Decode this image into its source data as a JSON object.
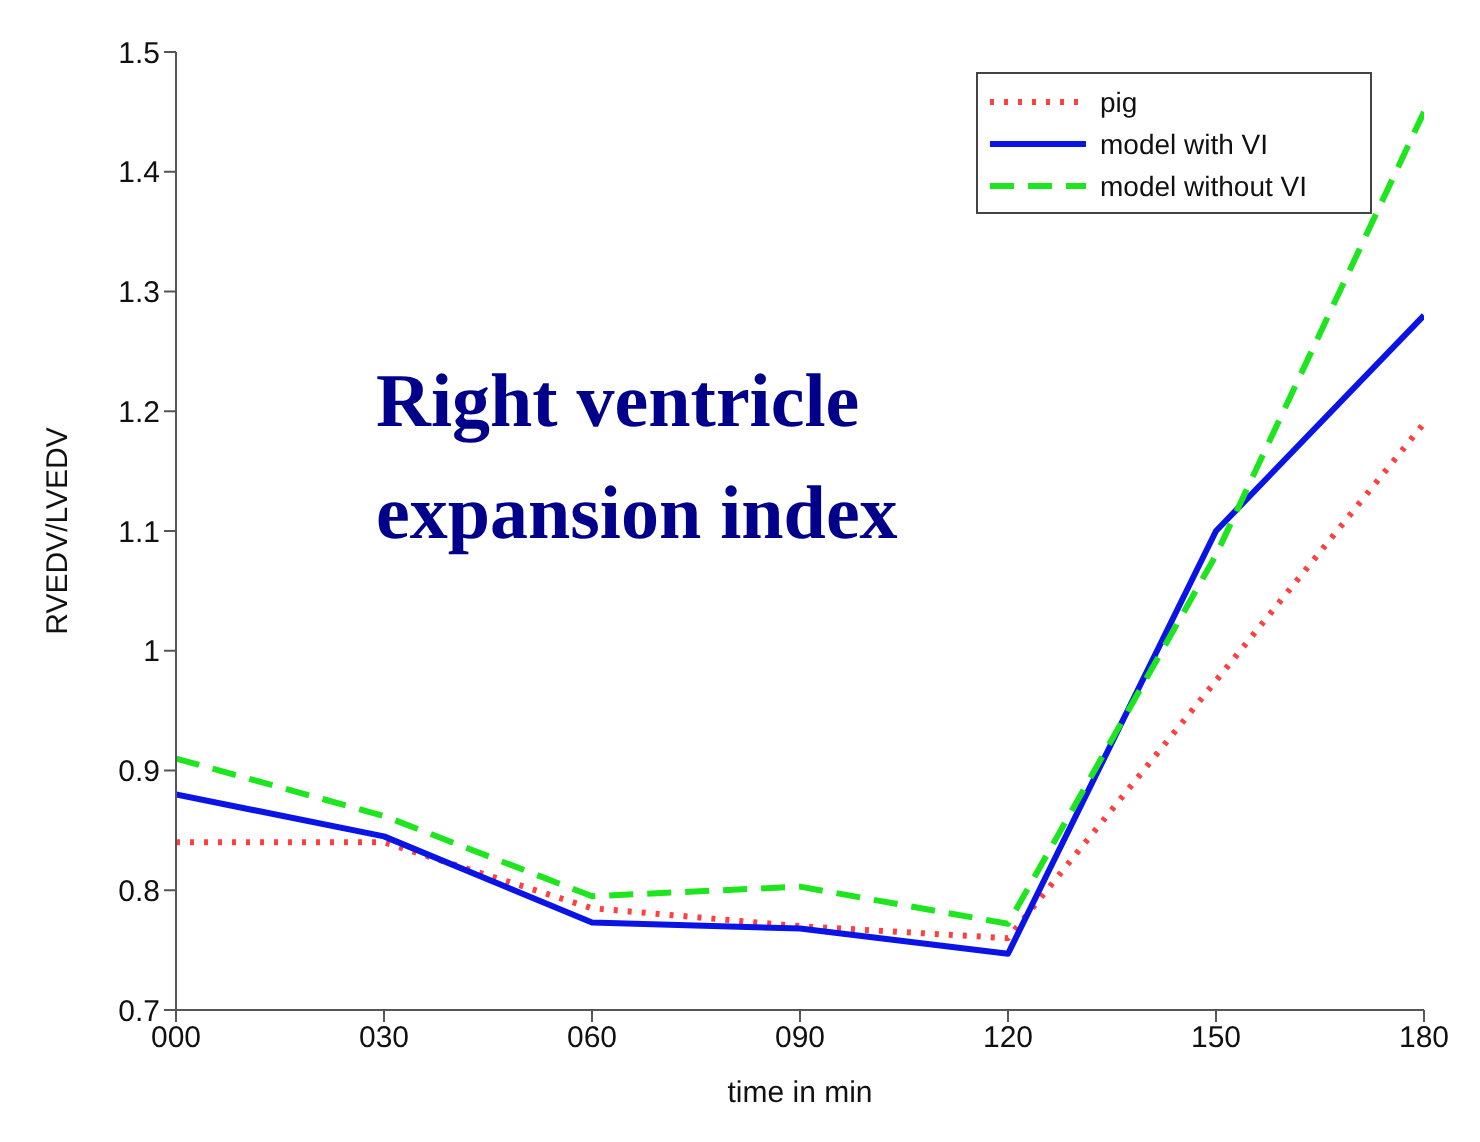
{
  "chart_data": {
    "type": "line",
    "xlabel": "time in min",
    "ylabel": "RVEDV/LVEDV",
    "annotations": [
      "Right ventricle expansion index"
    ],
    "x": [
      0,
      30,
      60,
      90,
      120,
      150,
      180
    ],
    "xlim": [
      0,
      180
    ],
    "xticks": [
      {
        "value": 0,
        "label": "000"
      },
      {
        "value": 30,
        "label": "030"
      },
      {
        "value": 60,
        "label": "060"
      },
      {
        "value": 90,
        "label": "090"
      },
      {
        "value": 120,
        "label": "120"
      },
      {
        "value": 150,
        "label": "150"
      },
      {
        "value": 180,
        "label": "180"
      }
    ],
    "ylim": [
      0.7,
      1.5
    ],
    "yticks": [
      0.7,
      0.8,
      0.9,
      1,
      1.1,
      1.2,
      1.3,
      1.4,
      1.5
    ],
    "legend": "top right",
    "marker": "none",
    "series": [
      {
        "name": "pig",
        "color": "#ff4040",
        "line_style": "dotted",
        "values": [
          0.84,
          0.84,
          0.785,
          0.77,
          0.76,
          0.975,
          1.19
        ]
      },
      {
        "name": "model with VI",
        "color": "#0a14e6",
        "line_style": "solid",
        "values": [
          0.88,
          0.845,
          0.773,
          0.768,
          0.747,
          1.1,
          1.28
        ]
      },
      {
        "name": "model without VI",
        "color": "#1ee61e",
        "line_style": "dashed",
        "values": [
          0.91,
          0.862,
          0.795,
          0.803,
          0.772,
          1.08,
          1.45
        ]
      }
    ]
  }
}
